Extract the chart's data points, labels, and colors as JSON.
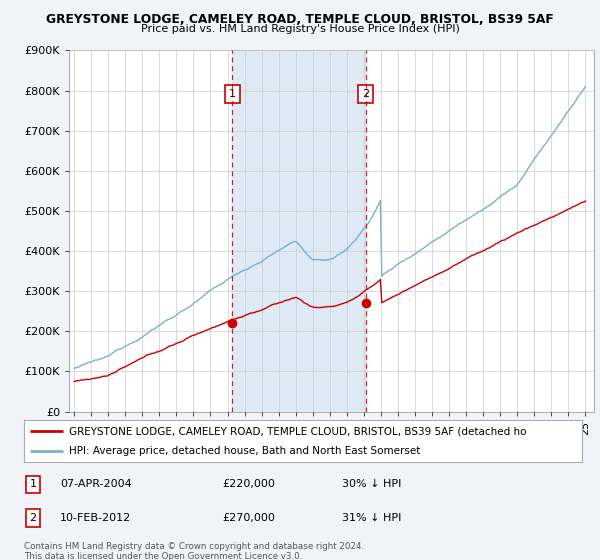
{
  "title_line1": "GREYSTONE LODGE, CAMELEY ROAD, TEMPLE CLOUD, BRISTOL, BS39 5AF",
  "title_line2": "Price paid vs. HM Land Registry's House Price Index (HPI)",
  "ylabel_ticks": [
    "£0",
    "£100K",
    "£200K",
    "£300K",
    "£400K",
    "£500K",
    "£600K",
    "£700K",
    "£800K",
    "£900K"
  ],
  "ytick_values": [
    0,
    100000,
    200000,
    300000,
    400000,
    500000,
    600000,
    700000,
    800000,
    900000
  ],
  "ylim": [
    0,
    900000
  ],
  "xlim_start": 1994.7,
  "xlim_end": 2025.5,
  "year_ticks": [
    1995,
    1996,
    1997,
    1998,
    1999,
    2000,
    2001,
    2002,
    2003,
    2004,
    2005,
    2006,
    2007,
    2008,
    2009,
    2010,
    2011,
    2012,
    2013,
    2014,
    2015,
    2016,
    2017,
    2018,
    2019,
    2020,
    2021,
    2022,
    2023,
    2024,
    2025
  ],
  "sale1_x": 2004.27,
  "sale1_y": 220000,
  "sale1_label": "1",
  "sale1_date": "07-APR-2004",
  "sale1_price": "£220,000",
  "sale1_hpi": "30% ↓ HPI",
  "sale2_x": 2012.11,
  "sale2_y": 270000,
  "sale2_label": "2",
  "sale2_date": "10-FEB-2012",
  "sale2_price": "£270,000",
  "sale2_hpi": "31% ↓ HPI",
  "red_line_color": "#cc0000",
  "blue_line_color": "#7ab0d4",
  "shade_color": "#deeaf5",
  "background_color": "#f0f4f8",
  "plot_bg_color": "#ffffff",
  "grid_color": "#cccccc",
  "legend_line1": "GREYSTONE LODGE, CAMELEY ROAD, TEMPLE CLOUD, BRISTOL, BS39 5AF (detached ho",
  "legend_line2": "HPI: Average price, detached house, Bath and North East Somerset",
  "footer": "Contains HM Land Registry data © Crown copyright and database right 2024.\nThis data is licensed under the Open Government Licence v3.0."
}
